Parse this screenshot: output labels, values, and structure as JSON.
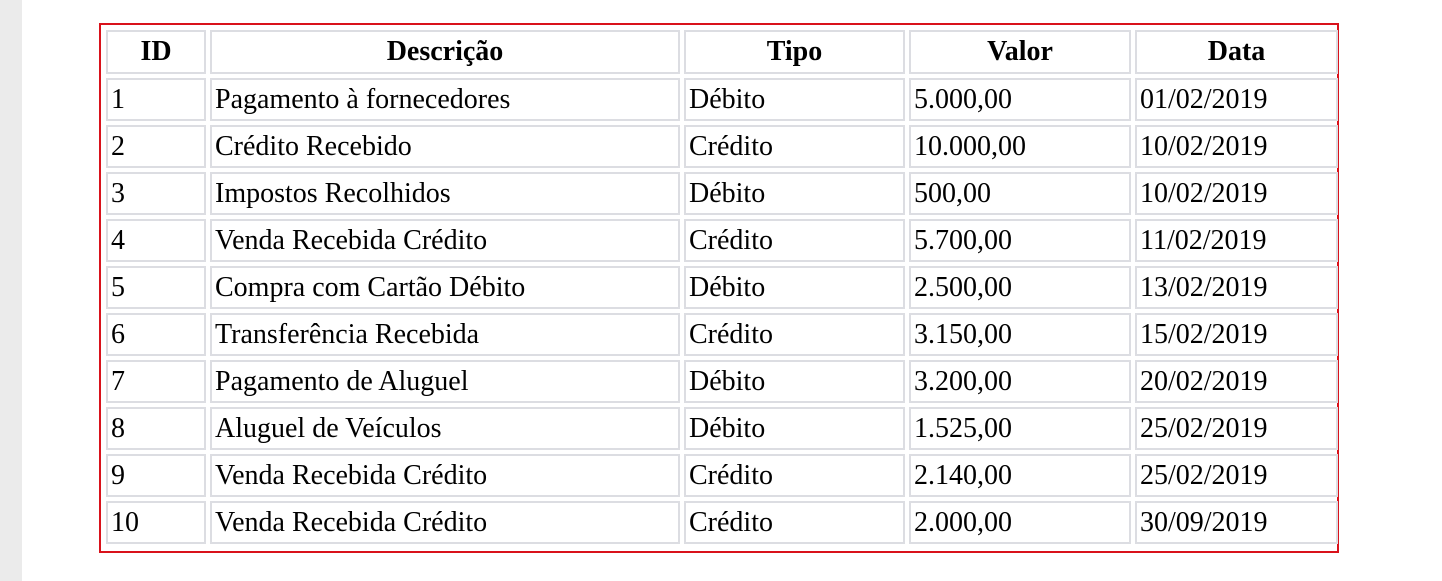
{
  "table": {
    "columns": [
      "ID",
      "Descrição",
      "Tipo",
      "Valor",
      "Data"
    ],
    "rows": [
      [
        "1",
        "Pagamento à fornecedores",
        "Débito",
        "5.000,00",
        "01/02/2019"
      ],
      [
        "2",
        "Crédito Recebido",
        "Crédito",
        "10.000,00",
        "10/02/2019"
      ],
      [
        "3",
        "Impostos Recolhidos",
        "Débito",
        "500,00",
        "10/02/2019"
      ],
      [
        "4",
        "Venda Recebida Crédito",
        "Crédito",
        "5.700,00",
        "11/02/2019"
      ],
      [
        "5",
        "Compra com Cartão Débito",
        "Débito",
        "2.500,00",
        "13/02/2019"
      ],
      [
        "6",
        "Transferência Recebida",
        "Crédito",
        "3.150,00",
        "15/02/2019"
      ],
      [
        "7",
        "Pagamento de Aluguel",
        "Débito",
        "3.200,00",
        "20/02/2019"
      ],
      [
        "8",
        "Aluguel de Veículos",
        "Débito",
        "1.525,00",
        "25/02/2019"
      ],
      [
        "9",
        "Venda Recebida Crédito",
        "Crédito",
        "2.140,00",
        "25/02/2019"
      ],
      [
        "10",
        "Venda Recebida Crédito",
        "Crédito",
        "2.000,00",
        "30/09/2019"
      ]
    ]
  },
  "colors": {
    "frame_border": "#d9121b",
    "cell_border": "#dcdde2",
    "left_gutter": "#ebebeb"
  }
}
